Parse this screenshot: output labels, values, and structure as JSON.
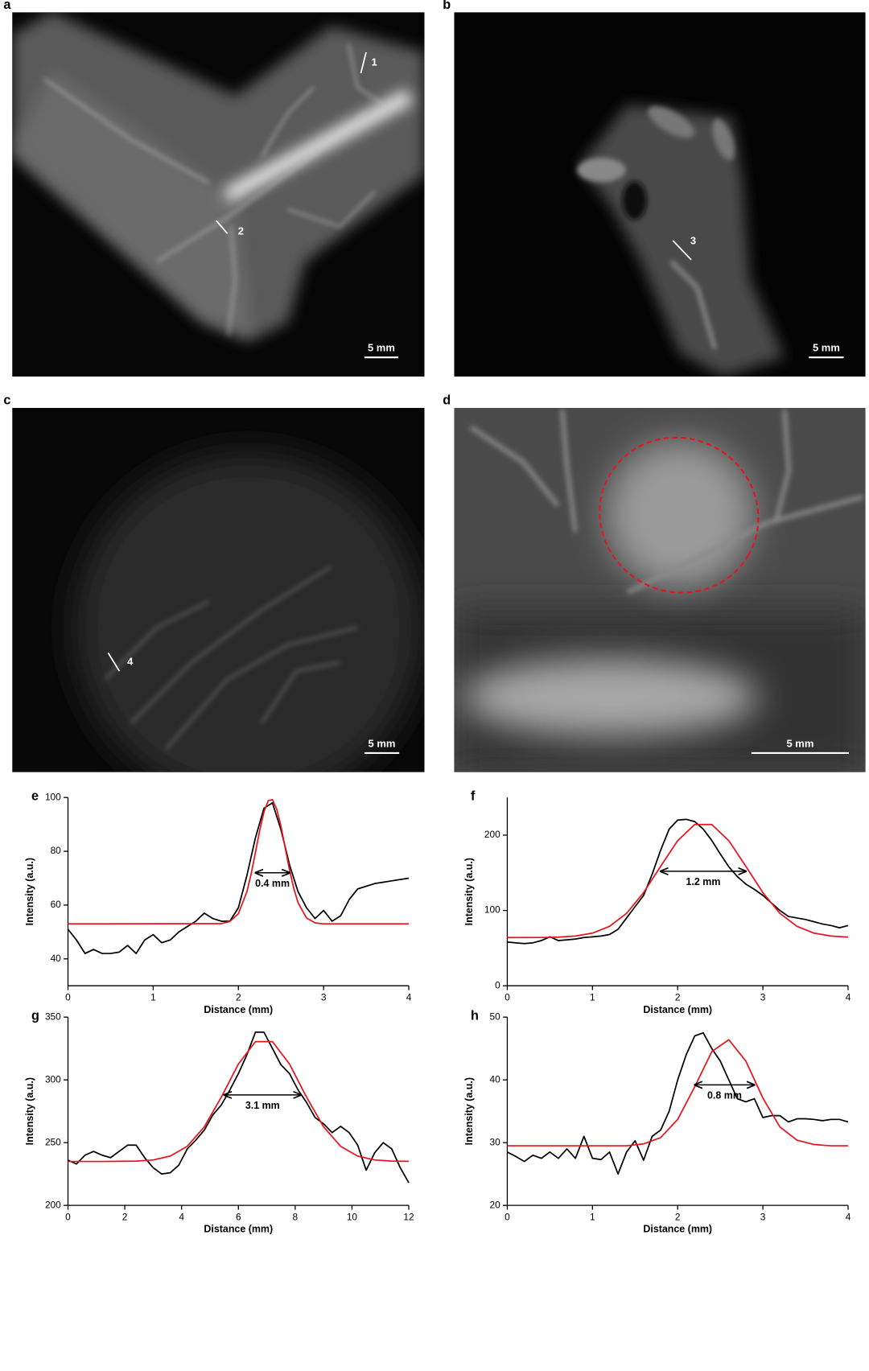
{
  "images": [
    {
      "label": "a",
      "markers": [
        "1",
        "2"
      ],
      "scale_bar": "5 mm"
    },
    {
      "label": "b",
      "markers": [
        "3"
      ],
      "scale_bar": "5 mm"
    },
    {
      "label": "c",
      "markers": [
        "4"
      ],
      "scale_bar": "5 mm"
    },
    {
      "label": "d",
      "scale_bar": "5 mm"
    }
  ],
  "chart_data": [
    {
      "type": "line",
      "label": "e",
      "xlabel": "Distance (mm)",
      "ylabel": "Intensity (a.u.)",
      "xlim": [
        0,
        4
      ],
      "ylim": [
        30,
        100
      ],
      "xticks": [
        0,
        1,
        2,
        3,
        4
      ],
      "yticks": [
        40,
        60,
        80,
        100
      ],
      "series": [
        {
          "color": "#000000",
          "x": [
            0,
            0.1,
            0.2,
            0.3,
            0.4,
            0.5,
            0.6,
            0.7,
            0.8,
            0.9,
            1,
            1.1,
            1.2,
            1.3,
            1.4,
            1.5,
            1.6,
            1.7,
            1.8,
            1.9,
            2,
            2.1,
            2.2,
            2.3,
            2.4,
            2.5,
            2.6,
            2.7,
            2.8,
            2.9,
            3,
            3.1,
            3.2,
            3.3,
            3.4,
            3.5,
            3.6,
            3.7,
            3.8,
            3.9,
            4
          ],
          "values": [
            51,
            47,
            42,
            43.5,
            42,
            42,
            42.5,
            45,
            42,
            47,
            49,
            46,
            47,
            50,
            52,
            54,
            57,
            55,
            54,
            54,
            59,
            71,
            85,
            96,
            98,
            88,
            75,
            65,
            59,
            55,
            58,
            54,
            56,
            62,
            66,
            67,
            68,
            68.5,
            69,
            69.5,
            70
          ]
        },
        {
          "color": "#e8141b",
          "x": [
            0,
            1.8,
            1.9,
            2,
            2.1,
            2.15,
            2.2,
            2.25,
            2.3,
            2.35,
            2.4,
            2.45,
            2.5,
            2.55,
            2.6,
            2.65,
            2.7,
            2.8,
            2.9,
            3,
            4
          ],
          "values": [
            53,
            53.1,
            53.9,
            56.8,
            65,
            71.6,
            79.5,
            87.7,
            94.6,
            98.8,
            99.2,
            95.7,
            89.3,
            81.2,
            73.1,
            66.2,
            60.9,
            55.2,
            53.4,
            53,
            53
          ]
        }
      ],
      "annotation": {
        "text": "0.4 mm",
        "span": [
          2.2,
          2.6
        ],
        "y": 72
      }
    },
    {
      "type": "line",
      "label": "f",
      "xlabel": "Distance (mm)",
      "ylabel": "Intensity (a.u.)",
      "xlim": [
        0,
        4
      ],
      "ylim": [
        0,
        250
      ],
      "xticks": [
        0,
        1,
        2,
        3,
        4
      ],
      "yticks": [
        0,
        100,
        200
      ],
      "series": [
        {
          "color": "#000000",
          "x": [
            0,
            0.1,
            0.2,
            0.3,
            0.4,
            0.5,
            0.6,
            0.7,
            0.8,
            0.9,
            1,
            1.1,
            1.2,
            1.3,
            1.4,
            1.5,
            1.6,
            1.7,
            1.8,
            1.9,
            2,
            2.1,
            2.2,
            2.3,
            2.4,
            2.5,
            2.6,
            2.7,
            2.8,
            2.9,
            3,
            3.1,
            3.2,
            3.3,
            3.4,
            3.5,
            3.6,
            3.7,
            3.8,
            3.9,
            4
          ],
          "values": [
            58,
            57,
            56,
            57,
            60,
            65,
            60,
            61,
            62,
            64,
            65,
            66,
            68,
            75,
            90,
            105,
            120,
            148,
            180,
            208,
            220,
            221,
            218,
            208,
            193,
            175,
            158,
            145,
            135,
            128,
            120,
            110,
            100,
            92,
            90,
            88,
            85,
            82,
            80,
            77,
            80
          ]
        },
        {
          "color": "#e8141b",
          "x": [
            0,
            0.2,
            0.4,
            0.6,
            0.8,
            1,
            1.2,
            1.4,
            1.6,
            1.8,
            2,
            2.2,
            2.4,
            2.6,
            2.8,
            3,
            3.2,
            3.4,
            3.6,
            3.8,
            4
          ],
          "values": [
            64,
            64,
            64.1,
            64.6,
            66,
            69.9,
            78.9,
            96.2,
            123.7,
            158.6,
            192.7,
            214.1,
            214.1,
            192.7,
            158.6,
            123.7,
            96.2,
            78.9,
            69.9,
            66,
            64.6
          ]
        }
      ],
      "annotation": {
        "text": "1.2 mm",
        "span": [
          1.8,
          2.8
        ],
        "y": 152
      }
    },
    {
      "type": "line",
      "label": "g",
      "xlabel": "Distance (mm)",
      "ylabel": "Intensity (a.u.)",
      "xlim": [
        0,
        12
      ],
      "ylim": [
        200,
        350
      ],
      "xticks": [
        0,
        2,
        4,
        6,
        8,
        10,
        12
      ],
      "yticks": [
        200,
        250,
        300,
        350
      ],
      "series": [
        {
          "color": "#000000",
          "x": [
            0,
            0.3,
            0.6,
            0.9,
            1.2,
            1.5,
            1.8,
            2.1,
            2.4,
            2.7,
            3,
            3.3,
            3.6,
            3.9,
            4.2,
            4.5,
            4.8,
            5.1,
            5.4,
            5.7,
            6,
            6.3,
            6.6,
            6.9,
            7.2,
            7.5,
            7.8,
            8.1,
            8.4,
            8.7,
            9,
            9.3,
            9.6,
            9.9,
            10.2,
            10.5,
            10.8,
            11.1,
            11.4,
            11.7,
            12
          ],
          "values": [
            236,
            233,
            240,
            243,
            240,
            238,
            243,
            248,
            248,
            238,
            230,
            225,
            226,
            232,
            245,
            252,
            260,
            272,
            280,
            292,
            305,
            320,
            338,
            338,
            325,
            312,
            305,
            292,
            282,
            270,
            265,
            258,
            263,
            258,
            248,
            228,
            242,
            250,
            245,
            230,
            218
          ]
        },
        {
          "color": "#e8141b",
          "x": [
            0,
            0.6,
            1.2,
            1.8,
            2.4,
            3,
            3.6,
            4.2,
            4.8,
            5.4,
            6,
            6.6,
            7.2,
            7.8,
            8.4,
            9,
            9.6,
            10.2,
            10.8,
            11.4,
            12
          ],
          "values": [
            235,
            235,
            235,
            235.1,
            235.3,
            236.2,
            239.3,
            247.1,
            262.6,
            286.3,
            312.6,
            330.5,
            330.5,
            312.6,
            286.3,
            262.6,
            247.1,
            239.3,
            236.2,
            235.3,
            235.1
          ]
        }
      ],
      "annotation": {
        "text": "3.1 mm",
        "span": [
          5.5,
          8.2
        ],
        "y": 288
      }
    },
    {
      "type": "line",
      "label": "h",
      "xlabel": "Distance (mm)",
      "ylabel": "Intensity (a.u.)",
      "xlim": [
        0,
        4
      ],
      "ylim": [
        20,
        50
      ],
      "xticks": [
        0,
        1,
        2,
        3,
        4
      ],
      "yticks": [
        20,
        30,
        40,
        50
      ],
      "series": [
        {
          "color": "#000000",
          "x": [
            0,
            0.1,
            0.2,
            0.3,
            0.4,
            0.5,
            0.6,
            0.7,
            0.8,
            0.9,
            1,
            1.1,
            1.2,
            1.3,
            1.4,
            1.5,
            1.6,
            1.7,
            1.8,
            1.9,
            2,
            2.1,
            2.2,
            2.3,
            2.4,
            2.5,
            2.6,
            2.7,
            2.8,
            2.9,
            3,
            3.1,
            3.2,
            3.3,
            3.4,
            3.5,
            3.6,
            3.7,
            3.8,
            3.9,
            4
          ],
          "values": [
            28.5,
            27.8,
            27,
            28,
            27.5,
            28.5,
            27.5,
            29,
            27.5,
            31,
            27.5,
            27.3,
            28.5,
            25,
            28.5,
            30.3,
            27.2,
            31,
            32,
            35,
            40,
            44,
            47,
            47.5,
            45,
            43,
            40,
            37,
            36.5,
            37,
            34,
            34.3,
            34.3,
            33.3,
            33.8,
            33.8,
            33.7,
            33.5,
            33.7,
            33.7,
            33.3
          ]
        },
        {
          "color": "#e8141b",
          "x": [
            0,
            0.2,
            0.4,
            0.6,
            0.8,
            1,
            1.2,
            1.4,
            1.6,
            1.8,
            2,
            2.2,
            2.4,
            2.6,
            2.8,
            3,
            3.2,
            3.4,
            3.6,
            3.8,
            4
          ],
          "values": [
            29.5,
            29.5,
            29.5,
            29.5,
            29.5,
            29.5,
            29.5,
            29.5,
            29.8,
            30.8,
            33.7,
            38.9,
            44.5,
            46.4,
            43,
            37.1,
            32.5,
            30.4,
            29.7,
            29.5,
            29.5
          ]
        }
      ],
      "annotation": {
        "text": "0.8 mm",
        "span": [
          2.2,
          2.9
        ],
        "y": 39.2
      }
    }
  ]
}
